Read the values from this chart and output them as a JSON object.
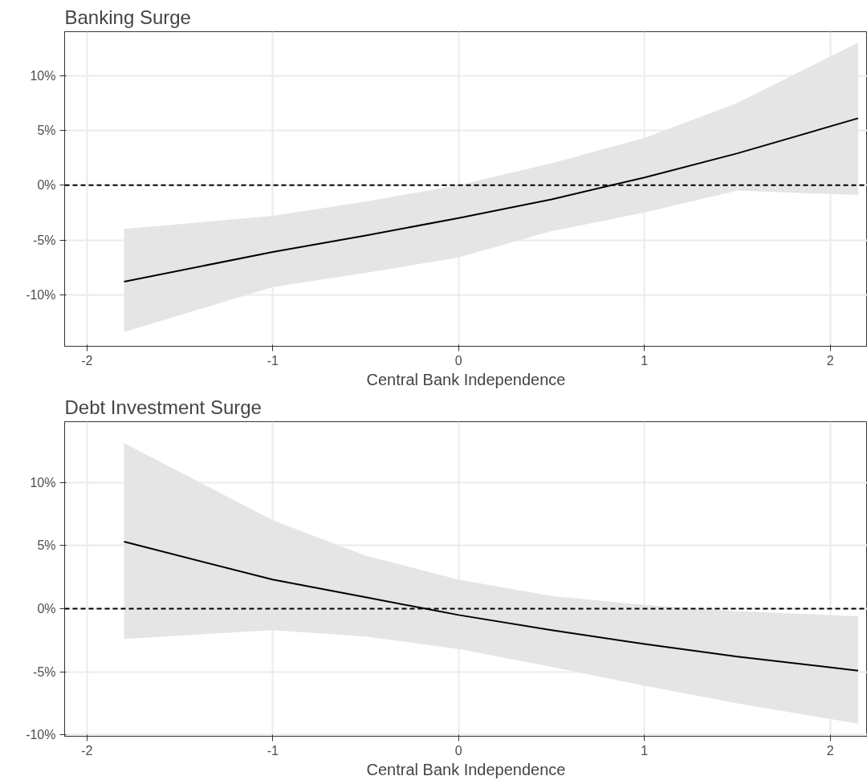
{
  "chart_data": [
    {
      "type": "line",
      "title": "Banking Surge",
      "xlabel": "Central Bank Independence",
      "grid": true,
      "line_style": "solid",
      "x": [
        -1.8,
        -1,
        -0.5,
        0,
        0.5,
        1,
        1.5,
        2.15
      ],
      "series": [
        {
          "color": "#000000",
          "values": [
            -8.8,
            -6.1,
            -4.6,
            -3.0,
            -1.3,
            0.7,
            2.9,
            6.1
          ],
          "lower": [
            -13.4,
            -9.3,
            -8.0,
            -6.6,
            -4.2,
            -2.5,
            -0.5,
            -0.9
          ],
          "upper": [
            -4.0,
            -2.8,
            -1.5,
            0.0,
            2.0,
            4.3,
            7.5,
            13.0
          ]
        }
      ],
      "xlim": [
        -2.12,
        2.2
      ],
      "ylim": [
        -14.7,
        14.0
      ],
      "xticks": [
        -2,
        -1,
        0,
        1,
        2
      ],
      "yticks": [
        {
          "value": -10,
          "label": "-10%"
        },
        {
          "value": -5,
          "label": "-5%"
        },
        {
          "value": 0,
          "label": "0%"
        },
        {
          "value": 5,
          "label": "5%"
        },
        {
          "value": 10,
          "label": "10%"
        }
      ],
      "ref_lines": [
        {
          "axis": "y",
          "value": 0,
          "color": "#000000",
          "line_style": "dashed"
        }
      ]
    },
    {
      "type": "line",
      "title": "Debt Investment Surge",
      "xlabel": "Central Bank Independence",
      "grid": true,
      "line_style": "solid",
      "x": [
        -1.8,
        -1,
        -0.5,
        0,
        0.5,
        1,
        1.5,
        2.15
      ],
      "series": [
        {
          "color": "#000000",
          "values": [
            5.3,
            2.3,
            0.9,
            -0.5,
            -1.7,
            -2.8,
            -3.8,
            -4.9
          ],
          "lower": [
            -2.4,
            -1.7,
            -2.2,
            -3.2,
            -4.6,
            -6.1,
            -7.5,
            -9.1
          ],
          "upper": [
            13.1,
            7.0,
            4.2,
            2.3,
            1.0,
            0.3,
            -0.2,
            -0.6
          ]
        }
      ],
      "xlim": [
        -2.12,
        2.2
      ],
      "ylim": [
        -10.1,
        14.8
      ],
      "xticks": [
        -2,
        -1,
        0,
        1,
        2
      ],
      "yticks": [
        {
          "value": -10,
          "label": "-10%"
        },
        {
          "value": -5,
          "label": "-5%"
        },
        {
          "value": 0,
          "label": "0%"
        },
        {
          "value": 5,
          "label": "5%"
        },
        {
          "value": 10,
          "label": "10%"
        }
      ],
      "ref_lines": [
        {
          "axis": "y",
          "value": 0,
          "color": "#000000",
          "line_style": "dashed"
        }
      ]
    }
  ]
}
